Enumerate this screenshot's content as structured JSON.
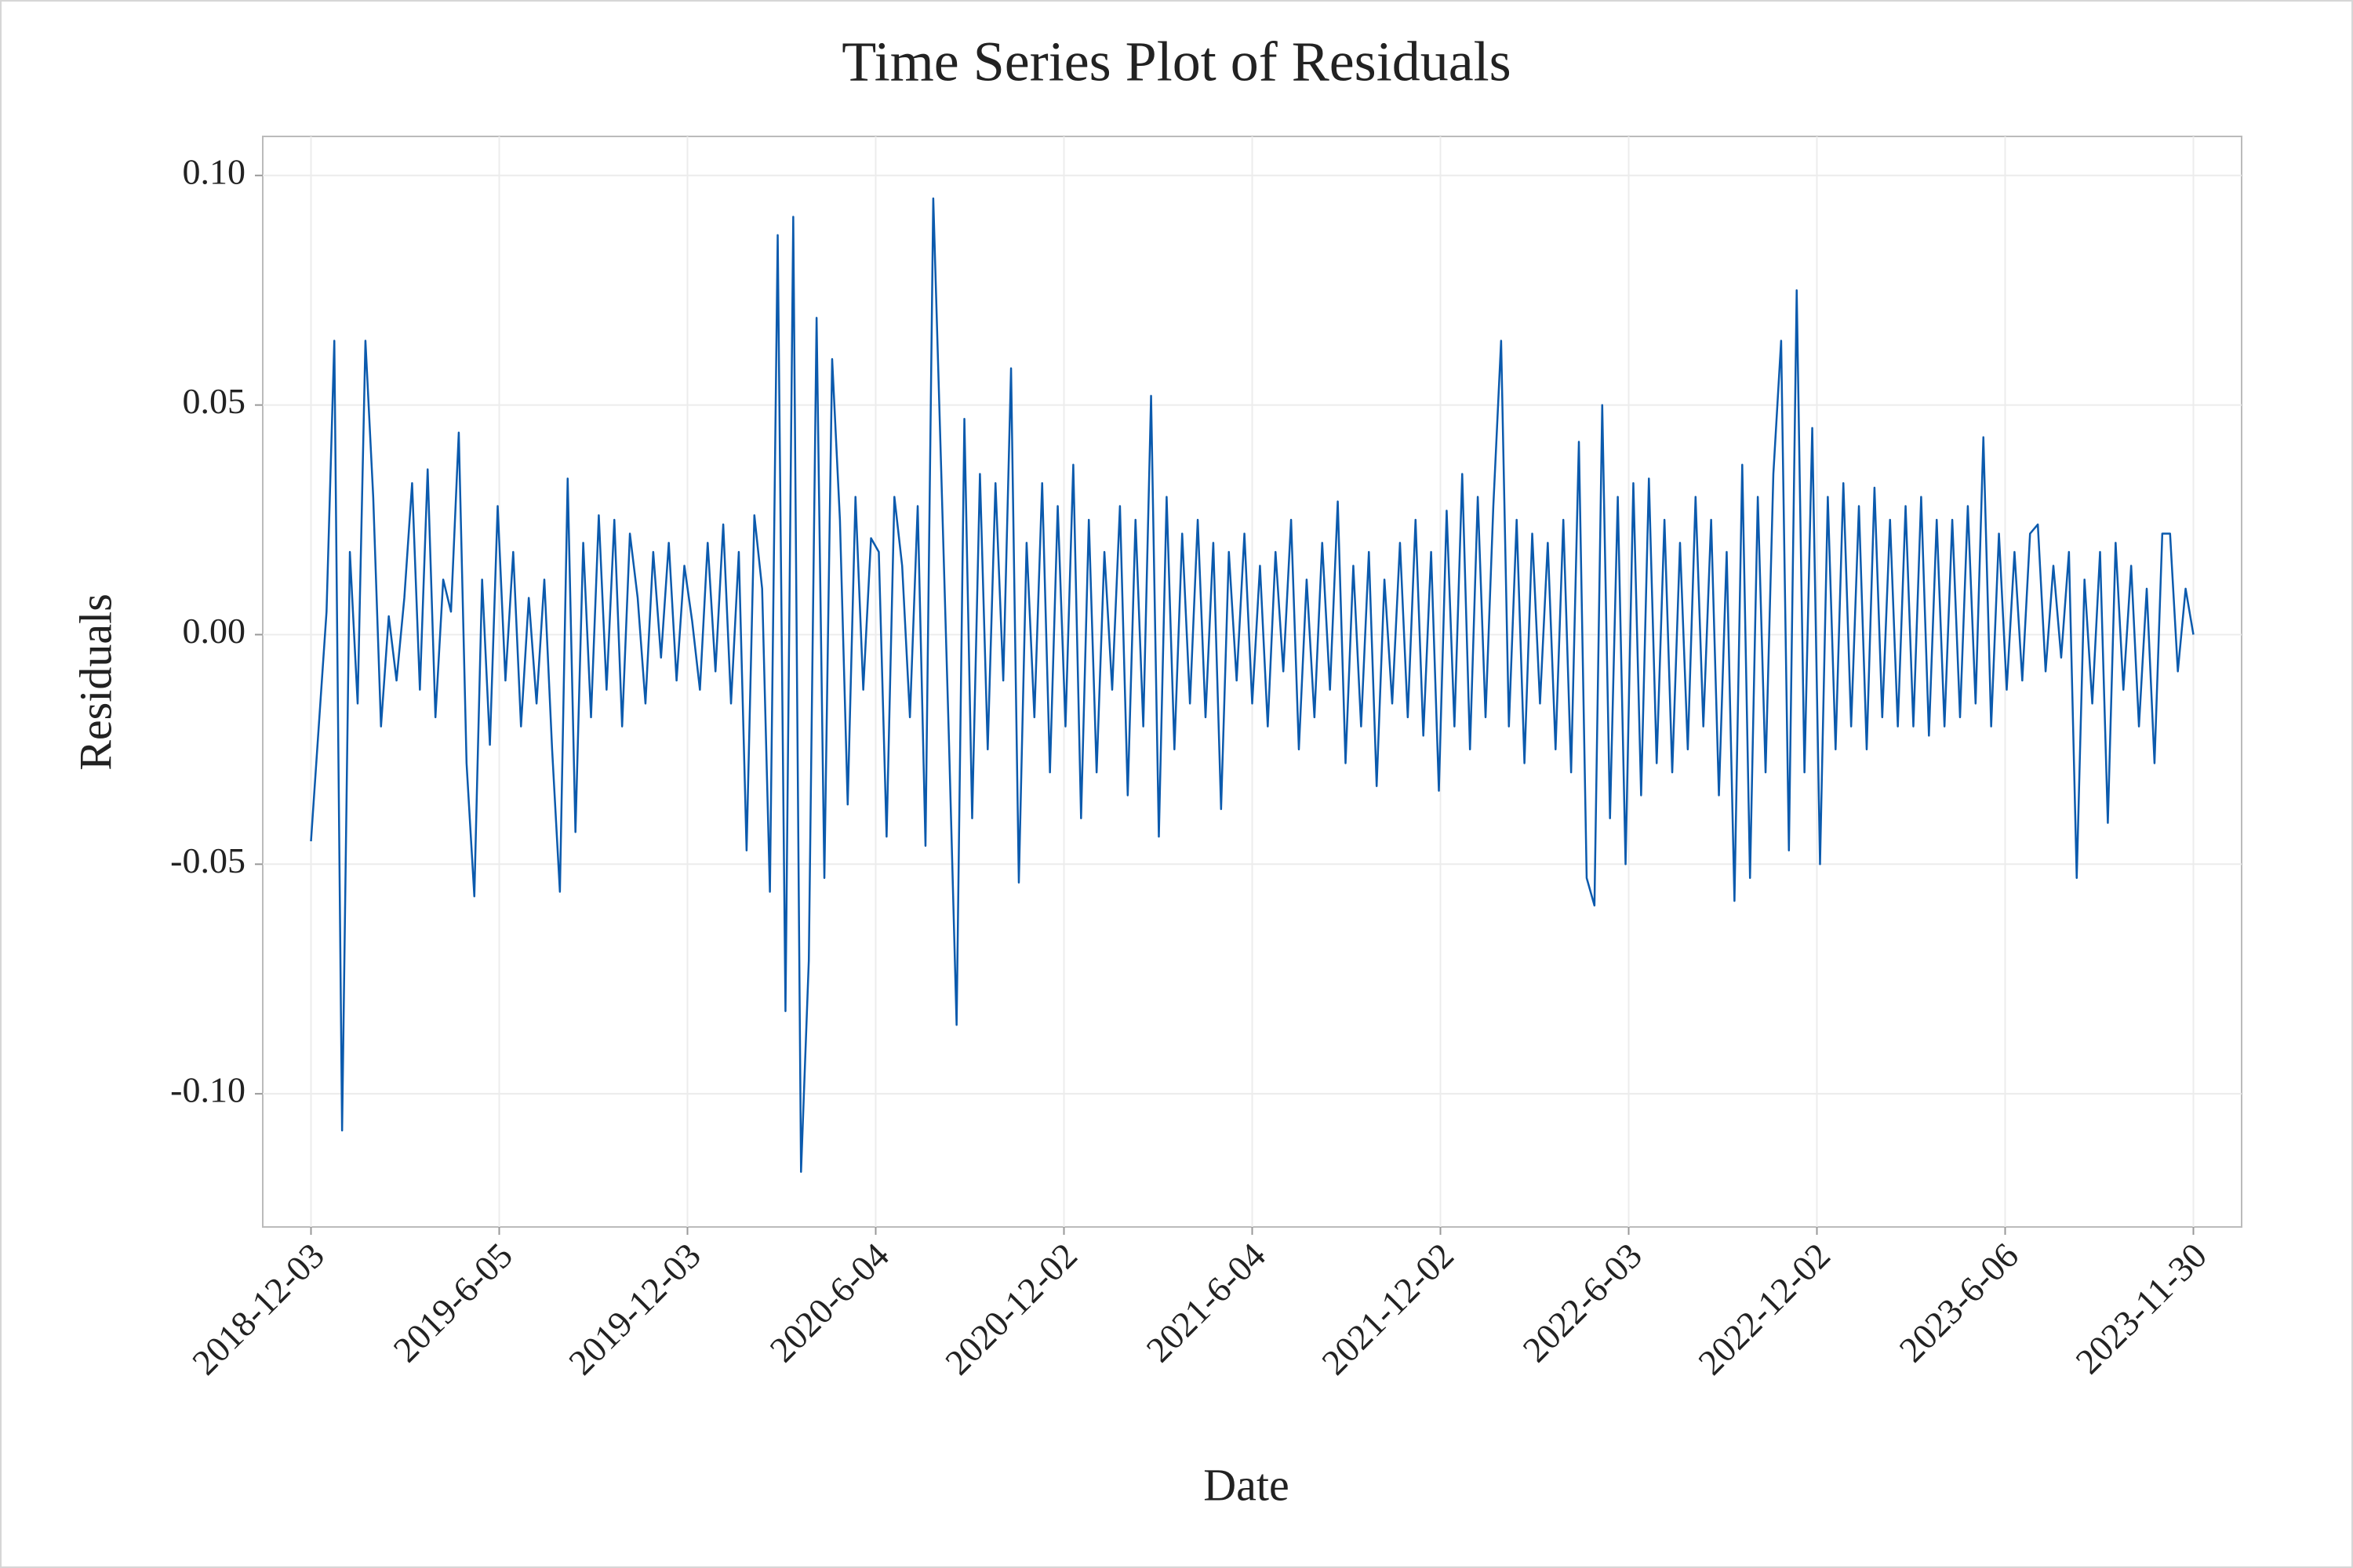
{
  "chart_data": {
    "type": "line",
    "title": "Time Series Plot of Residuals",
    "x_label": "Date",
    "y_label": "Residuals",
    "color": "#0b5aad",
    "grid": true,
    "xlim": [
      -31,
      1241
    ],
    "ylim": [
      -0.129,
      0.1085
    ],
    "xticks": [
      {
        "value": 0,
        "label": "2018-12-03"
      },
      {
        "value": 121,
        "label": "2019-6-05"
      },
      {
        "value": 242,
        "label": "2019-12-03"
      },
      {
        "value": 363,
        "label": "2020-6-04"
      },
      {
        "value": 484,
        "label": "2020-12-02"
      },
      {
        "value": 605,
        "label": "2021-6-04"
      },
      {
        "value": 726,
        "label": "2021-12-02"
      },
      {
        "value": 847,
        "label": "2022-6-03"
      },
      {
        "value": 968,
        "label": "2022-12-02"
      },
      {
        "value": 1089,
        "label": "2023-6-06"
      },
      {
        "value": 1210,
        "label": "2023-11-30"
      }
    ],
    "yticks": [
      {
        "value": -0.1,
        "label": "-0.10"
      },
      {
        "value": -0.05,
        "label": "-0.05"
      },
      {
        "value": 0,
        "label": "0.00"
      },
      {
        "value": 0.05,
        "label": "0.05"
      },
      {
        "value": 0.1,
        "label": "0.10"
      }
    ],
    "x": [
      0,
      5,
      10,
      15,
      20,
      25,
      30,
      35,
      40,
      45,
      50,
      55,
      60,
      65,
      70,
      75,
      80,
      85,
      90,
      95,
      100,
      105,
      110,
      115,
      120,
      125,
      130,
      135,
      140,
      145,
      150,
      155,
      160,
      165,
      170,
      175,
      180,
      185,
      190,
      195,
      200,
      205,
      210,
      215,
      220,
      225,
      230,
      235,
      240,
      245,
      250,
      255,
      260,
      265,
      270,
      275,
      280,
      285,
      290,
      295,
      300,
      305,
      310,
      315,
      320,
      325,
      330,
      335,
      340,
      345,
      350,
      355,
      360,
      365,
      370,
      375,
      380,
      385,
      390,
      395,
      400,
      405,
      410,
      415,
      420,
      425,
      430,
      435,
      440,
      445,
      450,
      455,
      460,
      465,
      470,
      475,
      480,
      485,
      490,
      495,
      500,
      505,
      510,
      515,
      520,
      525,
      530,
      535,
      540,
      545,
      550,
      555,
      560,
      565,
      570,
      575,
      580,
      585,
      590,
      595,
      600,
      605,
      610,
      615,
      620,
      625,
      630,
      635,
      640,
      645,
      650,
      655,
      660,
      665,
      670,
      675,
      680,
      685,
      690,
      695,
      700,
      705,
      710,
      715,
      720,
      725,
      730,
      735,
      740,
      745,
      750,
      755,
      760,
      765,
      770,
      775,
      780,
      785,
      790,
      795,
      800,
      805,
      810,
      815,
      820,
      825,
      830,
      835,
      840,
      845,
      850,
      855,
      860,
      865,
      870,
      875,
      880,
      885,
      890,
      895,
      900,
      905,
      910,
      915,
      920,
      925,
      930,
      935,
      940,
      945,
      950,
      955,
      960,
      965,
      970,
      975,
      980,
      985,
      990,
      995,
      1000,
      1005,
      1010,
      1015,
      1020,
      1025,
      1030,
      1035,
      1040,
      1045,
      1050,
      1055,
      1060,
      1065,
      1070,
      1075,
      1080,
      1085,
      1090,
      1095,
      1100,
      1105,
      1110,
      1115,
      1120,
      1125,
      1130,
      1135,
      1140,
      1145,
      1150,
      1155,
      1160,
      1165,
      1170,
      1175,
      1180,
      1185,
      1190,
      1195,
      1200,
      1205,
      1210
    ],
    "values": [
      -0.045,
      -0.02,
      0.005,
      0.064,
      -0.108,
      0.018,
      -0.015,
      0.064,
      0.03,
      -0.02,
      0.004,
      -0.01,
      0.008,
      0.033,
      -0.012,
      0.036,
      -0.018,
      0.012,
      0.005,
      0.044,
      -0.028,
      -0.057,
      0.012,
      -0.024,
      0.028,
      -0.01,
      0.018,
      -0.02,
      0.008,
      -0.015,
      0.012,
      -0.025,
      -0.056,
      0.034,
      -0.043,
      0.02,
      -0.018,
      0.026,
      -0.012,
      0.025,
      -0.02,
      0.022,
      0.008,
      -0.015,
      0.018,
      -0.005,
      0.02,
      -0.01,
      0.015,
      0.003,
      -0.012,
      0.02,
      -0.008,
      0.024,
      -0.015,
      0.018,
      -0.047,
      0.026,
      0.01,
      -0.056,
      0.087,
      -0.082,
      0.091,
      -0.117,
      -0.071,
      0.069,
      -0.053,
      0.06,
      0.025,
      -0.037,
      0.03,
      -0.012,
      0.021,
      0.018,
      -0.044,
      0.03,
      0.015,
      -0.018,
      0.028,
      -0.046,
      0.095,
      0.037,
      -0.022,
      -0.085,
      0.047,
      -0.04,
      0.035,
      -0.025,
      0.033,
      -0.01,
      0.058,
      -0.054,
      0.02,
      -0.018,
      0.033,
      -0.03,
      0.028,
      -0.02,
      0.037,
      -0.04,
      0.025,
      -0.03,
      0.018,
      -0.012,
      0.028,
      -0.035,
      0.025,
      -0.02,
      0.052,
      -0.044,
      0.03,
      -0.025,
      0.022,
      -0.015,
      0.025,
      -0.018,
      0.02,
      -0.038,
      0.018,
      -0.01,
      0.022,
      -0.015,
      0.015,
      -0.02,
      0.018,
      -0.008,
      0.025,
      -0.025,
      0.012,
      -0.018,
      0.02,
      -0.012,
      0.029,
      -0.028,
      0.015,
      -0.02,
      0.018,
      -0.033,
      0.012,
      -0.015,
      0.02,
      -0.018,
      0.025,
      -0.022,
      0.018,
      -0.034,
      0.027,
      -0.02,
      0.035,
      -0.025,
      0.03,
      -0.018,
      0.028,
      0.064,
      -0.02,
      0.025,
      -0.028,
      0.022,
      -0.015,
      0.02,
      -0.025,
      0.025,
      -0.03,
      0.042,
      -0.053,
      -0.059,
      0.05,
      -0.04,
      0.03,
      -0.05,
      0.033,
      -0.035,
      0.034,
      -0.028,
      0.025,
      -0.03,
      0.02,
      -0.025,
      0.03,
      -0.02,
      0.025,
      -0.035,
      0.018,
      -0.058,
      0.037,
      -0.053,
      0.03,
      -0.03,
      0.035,
      0.064,
      -0.047,
      0.075,
      -0.03,
      0.045,
      -0.05,
      0.03,
      -0.025,
      0.033,
      -0.02,
      0.028,
      -0.025,
      0.032,
      -0.018,
      0.025,
      -0.02,
      0.028,
      -0.02,
      0.03,
      -0.022,
      0.025,
      -0.02,
      0.025,
      -0.018,
      0.028,
      -0.015,
      0.043,
      -0.02,
      0.022,
      -0.012,
      0.018,
      -0.01,
      0.022,
      0.024,
      -0.008,
      0.015,
      -0.005,
      0.018,
      -0.053,
      0.012,
      -0.015,
      0.018,
      -0.041,
      0.02,
      -0.012,
      0.015,
      -0.02,
      0.01,
      -0.028,
      0.022,
      0.022,
      -0.008,
      0.01,
      0
    ]
  }
}
